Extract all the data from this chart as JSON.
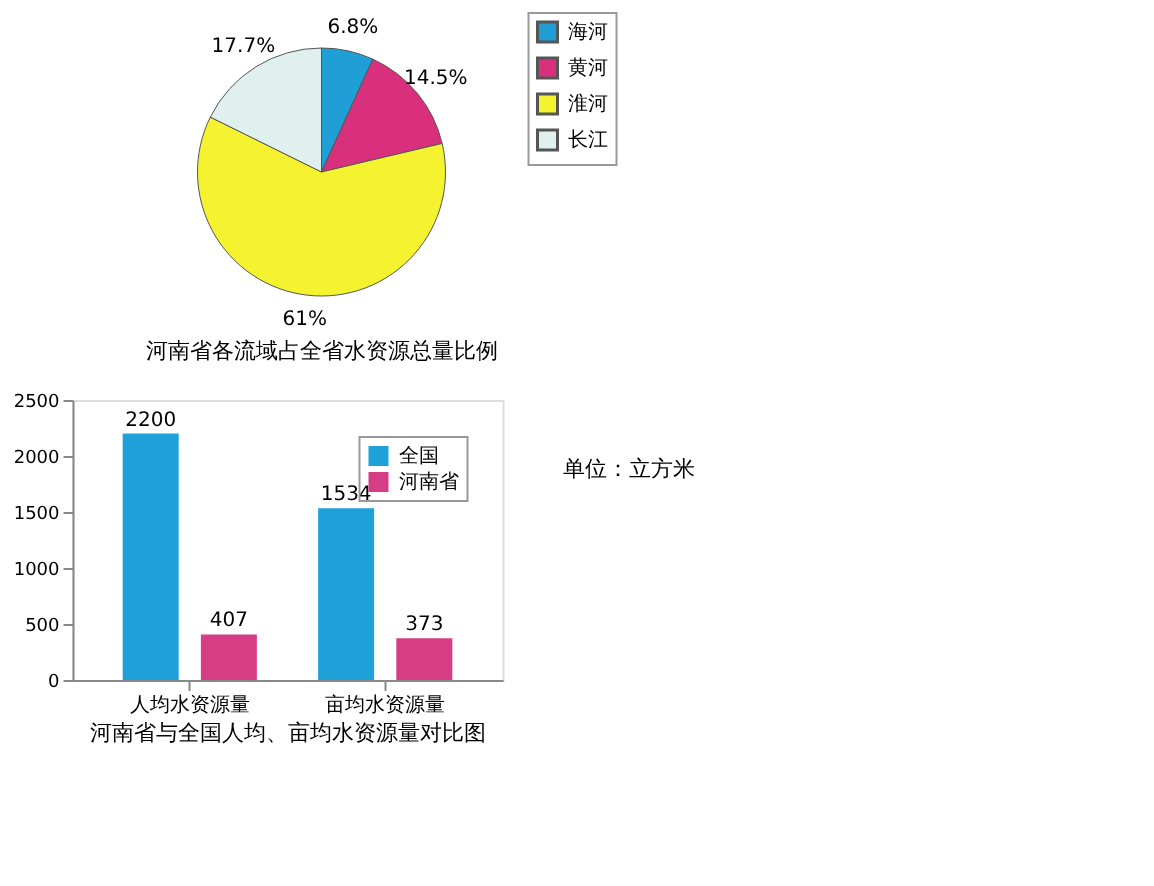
{
  "chart_data": [
    {
      "type": "pie",
      "title": "河南省各流域占全省水资源总量比例",
      "categories": [
        "海河",
        "黄河",
        "淮河",
        "长江"
      ],
      "values": [
        6.8,
        14.5,
        61,
        17.7
      ],
      "colors": [
        "#1f9fd6",
        "#d8307c",
        "#f5f230",
        "#dff0ee"
      ],
      "value_labels": [
        "6.8%",
        "14.5%",
        "61%",
        "17.7%"
      ],
      "legend": "right"
    },
    {
      "type": "bar",
      "title": "河南省与全国人均、亩均水资源量对比图",
      "categories": [
        "人均水资源量",
        "亩均水资源量"
      ],
      "series": [
        {
          "name": "全国",
          "color": "#1ea0d8",
          "values": [
            2200,
            1534
          ]
        },
        {
          "name": "河南省",
          "color": "#d63d85",
          "values": [
            407,
            373
          ]
        }
      ],
      "ylim": [
        0,
        2500
      ],
      "yticks": [
        0,
        500,
        1000,
        1500,
        2000,
        2500
      ],
      "data_labels": true,
      "legend": "top right",
      "grid": false,
      "annotations": [
        "单位：立方米"
      ]
    }
  ]
}
